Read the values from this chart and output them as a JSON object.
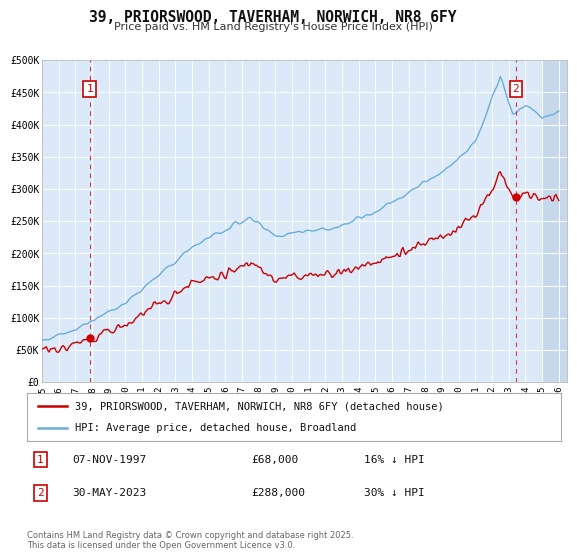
{
  "title": "39, PRIORSWOOD, TAVERHAM, NORWICH, NR8 6FY",
  "subtitle": "Price paid vs. HM Land Registry's House Price Index (HPI)",
  "ylim": [
    0,
    500000
  ],
  "yticks": [
    0,
    50000,
    100000,
    150000,
    200000,
    250000,
    300000,
    350000,
    400000,
    450000,
    500000
  ],
  "ytick_labels": [
    "£0",
    "£50K",
    "£100K",
    "£150K",
    "£200K",
    "£250K",
    "£300K",
    "£350K",
    "£400K",
    "£450K",
    "£500K"
  ],
  "xlim_start": 1995.0,
  "xlim_end": 2026.5,
  "plot_bg_color": "#dce9f8",
  "grid_color": "#ffffff",
  "hpi_line_color": "#6aaed6",
  "price_line_color": "#cc0000",
  "sale1_date": 1997.85,
  "sale1_price": 68000,
  "sale2_date": 2023.41,
  "sale2_price": 288000,
  "annotation1_label": "1",
  "annotation2_label": "2",
  "legend_line1": "39, PRIORSWOOD, TAVERHAM, NORWICH, NR8 6FY (detached house)",
  "legend_line2": "HPI: Average price, detached house, Broadland",
  "note1_label": "1",
  "note1_date": "07-NOV-1997",
  "note1_price": "£68,000",
  "note1_hpi": "16% ↓ HPI",
  "note2_label": "2",
  "note2_date": "30-MAY-2023",
  "note2_price": "£288,000",
  "note2_hpi": "30% ↓ HPI",
  "footer": "Contains HM Land Registry data © Crown copyright and database right 2025.\nThis data is licensed under the Open Government Licence v3.0.",
  "future_start": 2025.0
}
